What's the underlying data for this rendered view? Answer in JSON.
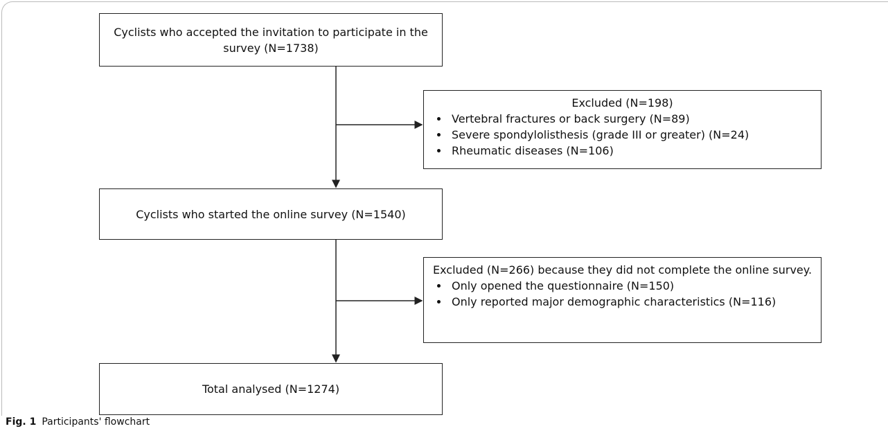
{
  "nodes": [
    {
      "label": "Cyclists who accepted the invitation to participate in the survey (N=1738)"
    },
    {
      "label": "Excluded (N=198)",
      "items": [
        "Vertebral fractures or back surgery (N=89)",
        "Severe spondylolisthesis (grade III or greater) (N=24)",
        "Rheumatic diseases (N=106)"
      ]
    },
    {
      "label": "Cyclists who started the online survey (N=1540)"
    },
    {
      "label": "Excluded (N=266) because they did not complete the online survey.",
      "items": [
        "Only opened the questionnaire (N=150)",
        "Only reported major demographic characteristics (N=116)"
      ]
    },
    {
      "label": "Total analysed (N=1274)"
    }
  ],
  "caption": {
    "label": "Fig. 1",
    "text": "Participants' flowchart"
  }
}
